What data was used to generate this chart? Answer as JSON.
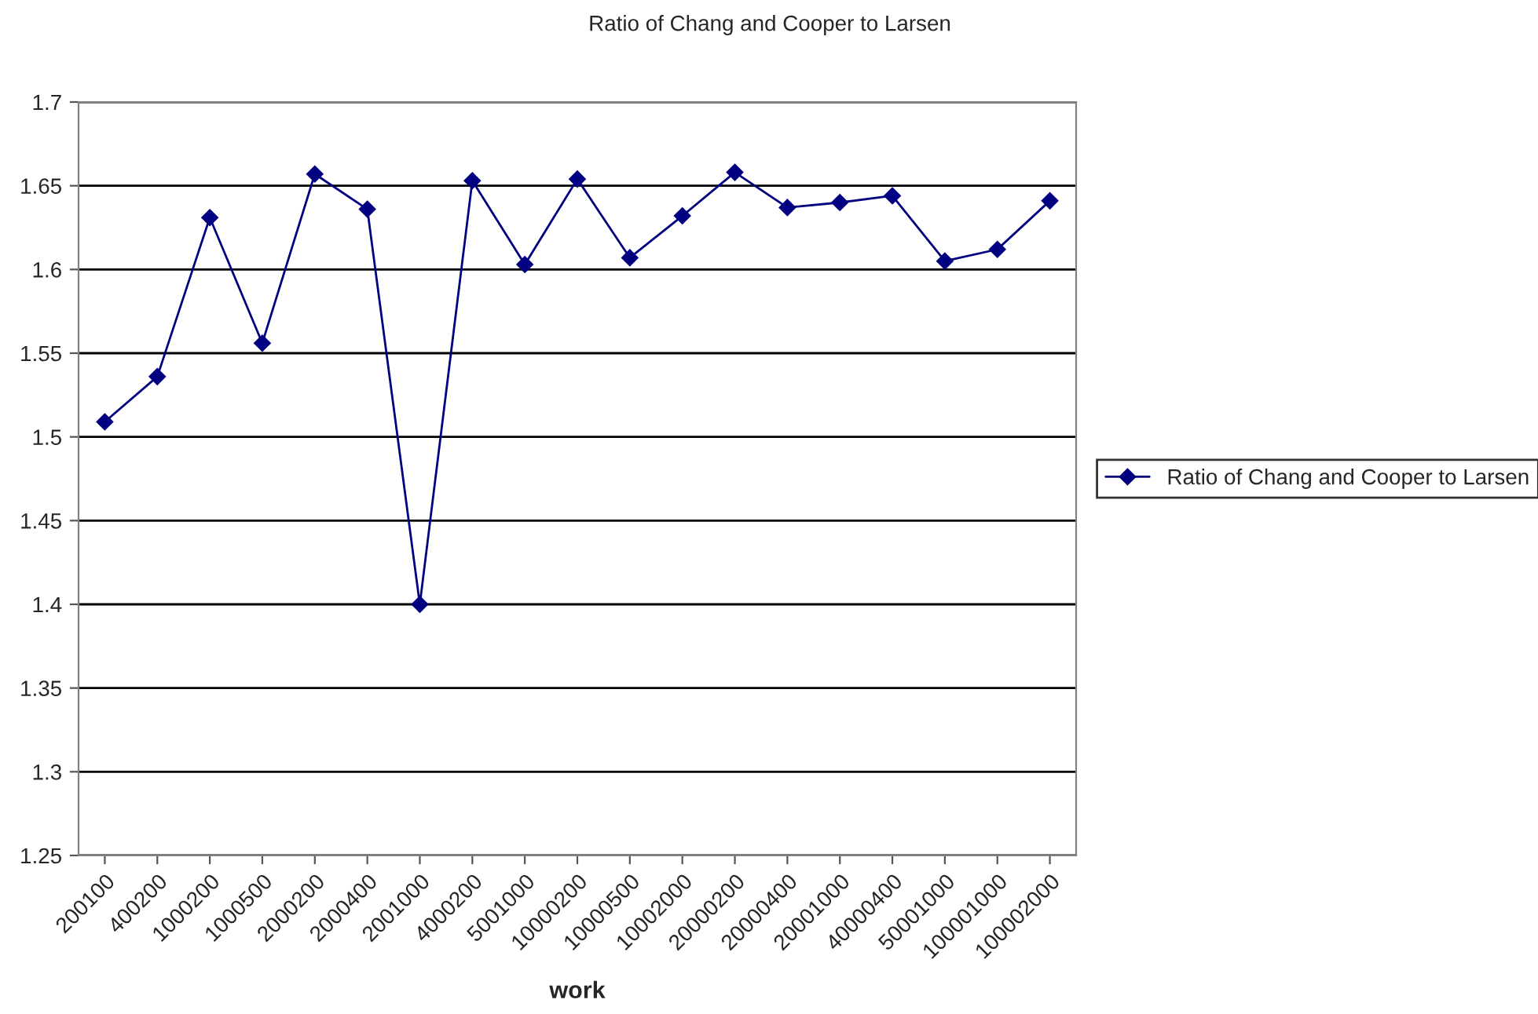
{
  "chart_data": {
    "type": "line",
    "title": "Ratio of Chang and Cooper to Larsen",
    "xlabel": "work",
    "categories": [
      "200100",
      "400200",
      "1000200",
      "1000500",
      "2000200",
      "2000400",
      "2001000",
      "4000200",
      "5001000",
      "10000200",
      "10000500",
      "10002000",
      "20000200",
      "20000400",
      "20001000",
      "40000400",
      "50001000",
      "100001000",
      "100002000"
    ],
    "series": [
      {
        "name": "Ratio of Chang and Cooper to Larsen",
        "color": "#000080",
        "values": [
          1.509,
          1.536,
          1.631,
          1.556,
          1.657,
          1.636,
          1.4,
          1.653,
          1.603,
          1.654,
          1.607,
          1.632,
          1.658,
          1.637,
          1.64,
          1.644,
          1.605,
          1.612,
          1.641
        ]
      }
    ],
    "ylim": [
      1.25,
      1.7
    ],
    "yticks": [
      1.25,
      1.3,
      1.35,
      1.4,
      1.45,
      1.5,
      1.55,
      1.6,
      1.65,
      1.7
    ],
    "grid": "y",
    "legend": "right",
    "marker": "diamond",
    "line_style": "solid"
  }
}
